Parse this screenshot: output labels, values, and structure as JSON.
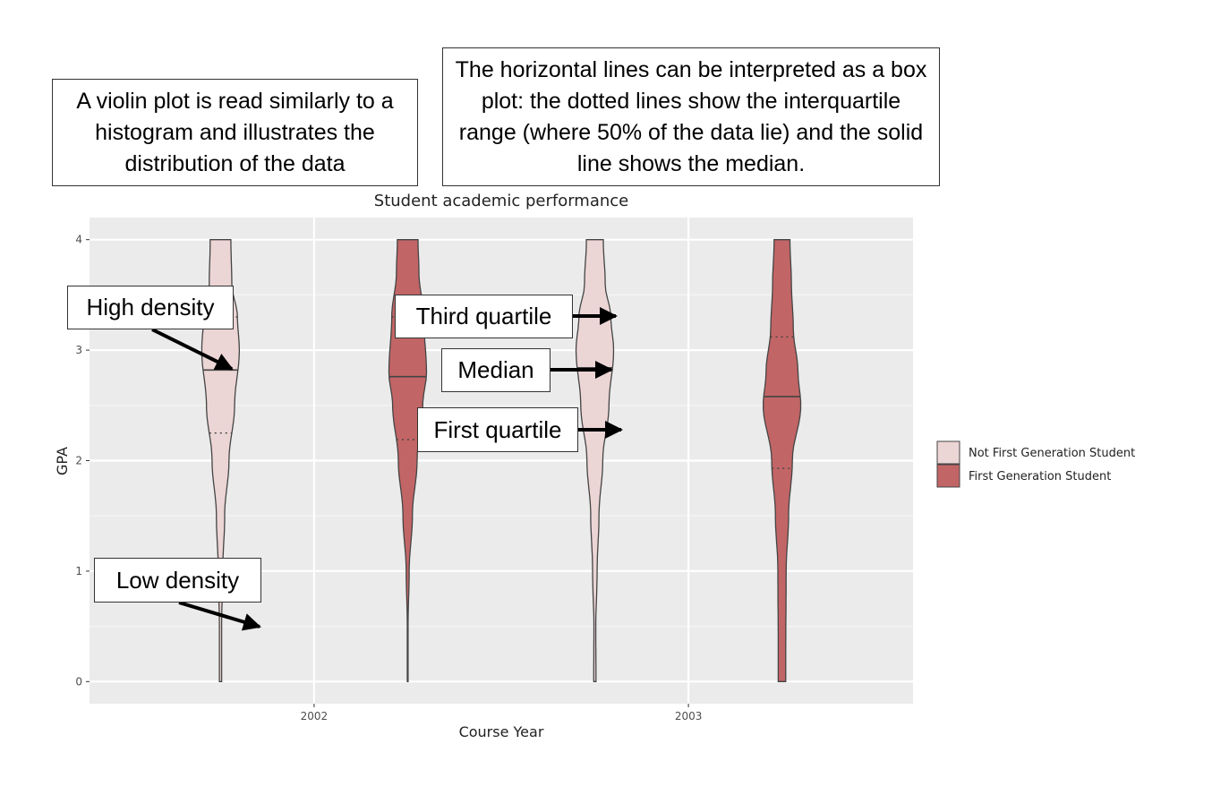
{
  "callouts": {
    "violin": "A violin plot is read similarly to a histogram and illustrates the distribution of the data",
    "lines": "The horizontal lines can be interpreted as a box plot: the dotted lines show the interquartile range (where 50% of the data lie) and the solid line shows the median.",
    "high_density": "High density",
    "low_density": "Low density",
    "third_quartile": "Third quartile",
    "median": "Median",
    "first_quartile": "First quartile"
  },
  "chart_data": {
    "type": "violin",
    "title": "Student academic performance",
    "xlabel": "Course Year",
    "ylabel": "GPA",
    "categories": [
      "2002",
      "2003"
    ],
    "ylim": [
      -0.2,
      4.2
    ],
    "yticks": [
      0,
      1,
      2,
      3,
      4
    ],
    "grid": true,
    "legend_position": "right",
    "series": [
      {
        "name": "Not First Generation Student",
        "color": "#ecd5d5",
        "groups": [
          {
            "category": "2002",
            "min": 0,
            "max": 4,
            "q1": 2.25,
            "median": 2.82,
            "q3": 3.3,
            "density": [
              [
                0,
                0.06
              ],
              [
                0.5,
                0.06
              ],
              [
                1,
                0.12
              ],
              [
                1.5,
                0.22
              ],
              [
                2,
                0.45
              ],
              [
                2.5,
                0.75
              ],
              [
                3,
                1.0
              ],
              [
                3.3,
                0.9
              ],
              [
                3.6,
                0.6
              ],
              [
                4,
                0.55
              ]
            ]
          },
          {
            "category": "2003",
            "min": 0,
            "max": 4,
            "q1": 2.27,
            "median": 2.84,
            "q3": 3.3,
            "density": [
              [
                0,
                0.06
              ],
              [
                0.5,
                0.05
              ],
              [
                1,
                0.12
              ],
              [
                1.5,
                0.22
              ],
              [
                2,
                0.42
              ],
              [
                2.5,
                0.75
              ],
              [
                3,
                1.0
              ],
              [
                3.3,
                0.85
              ],
              [
                3.6,
                0.55
              ],
              [
                4,
                0.45
              ]
            ]
          }
        ]
      },
      {
        "name": "First Generation Student",
        "color": "#c26566",
        "groups": [
          {
            "category": "2002",
            "min": 0,
            "max": 4,
            "q1": 2.19,
            "median": 2.76,
            "q3": 3.3,
            "density": [
              [
                0,
                0.02
              ],
              [
                0.5,
                0.02
              ],
              [
                1,
                0.08
              ],
              [
                1.5,
                0.25
              ],
              [
                2,
                0.5
              ],
              [
                2.5,
                0.8
              ],
              [
                2.8,
                1.0
              ],
              [
                3.3,
                0.85
              ],
              [
                3.7,
                0.6
              ],
              [
                4,
                0.55
              ]
            ]
          },
          {
            "category": "2003",
            "min": 0,
            "max": 4,
            "q1": 1.93,
            "median": 2.58,
            "q3": 3.12,
            "density": [
              [
                0,
                0.2
              ],
              [
                0.3,
                0.2
              ],
              [
                1,
                0.22
              ],
              [
                1.5,
                0.35
              ],
              [
                2,
                0.55
              ],
              [
                2.5,
                1.0
              ],
              [
                2.8,
                0.85
              ],
              [
                3.2,
                0.6
              ],
              [
                3.6,
                0.5
              ],
              [
                4,
                0.42
              ]
            ]
          }
        ]
      }
    ]
  }
}
